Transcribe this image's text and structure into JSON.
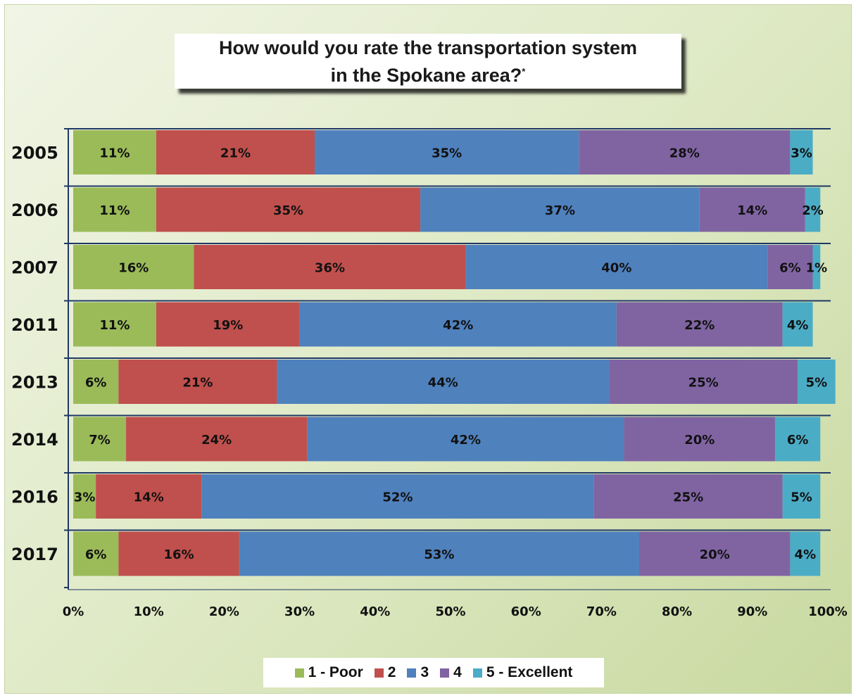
{
  "title_line1": "How would you rate the transportation system",
  "title_line2": "in the Spokane area?",
  "title_marker": "*",
  "chart_data": {
    "type": "bar",
    "orientation": "horizontal",
    "stacked": true,
    "categories": [
      "2005",
      "2006",
      "2007",
      "2011",
      "2013",
      "2014",
      "2016",
      "2017"
    ],
    "series": [
      {
        "name": "1 - Poor",
        "color": "#9bbb59",
        "values": [
          11,
          11,
          16,
          11,
          6,
          7,
          3,
          6
        ]
      },
      {
        "name": "2",
        "color": "#c0504d",
        "values": [
          21,
          35,
          36,
          19,
          21,
          24,
          14,
          16
        ]
      },
      {
        "name": "3",
        "color": "#4f81bd",
        "values": [
          35,
          37,
          40,
          42,
          44,
          42,
          52,
          53
        ]
      },
      {
        "name": "4",
        "color": "#8064a2",
        "values": [
          28,
          14,
          6,
          22,
          25,
          20,
          25,
          20
        ]
      },
      {
        "name": "5 - Excellent",
        "color": "#4bacc6",
        "values": [
          3,
          2,
          1,
          4,
          5,
          6,
          5,
          4
        ]
      }
    ],
    "x_ticks": [
      "0%",
      "10%",
      "20%",
      "30%",
      "40%",
      "50%",
      "60%",
      "70%",
      "80%",
      "90%",
      "100%"
    ],
    "xlim": [
      0,
      100
    ],
    "value_suffix": "%",
    "legend_position": "bottom",
    "grid": false
  }
}
